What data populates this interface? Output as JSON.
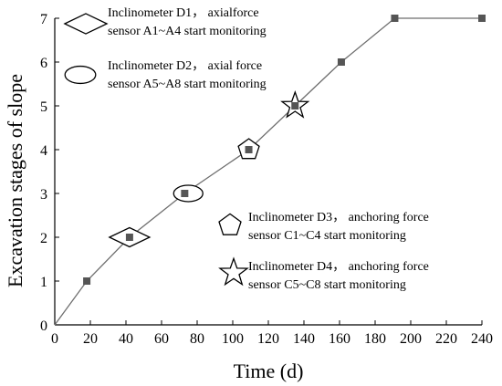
{
  "chart_data": {
    "type": "line",
    "xlabel": "Time (d)",
    "ylabel": "Excavation stages of slope",
    "xlim": [
      0,
      240
    ],
    "ylim": [
      0,
      7
    ],
    "xticks": [
      0,
      20,
      40,
      60,
      80,
      100,
      120,
      140,
      160,
      180,
      200,
      220,
      240
    ],
    "yticks": [
      0,
      1,
      2,
      3,
      4,
      5,
      6,
      7
    ],
    "grid": false,
    "series": [
      {
        "x": [
          0,
          18,
          42,
          73,
          109,
          135,
          161,
          191,
          240
        ],
        "y": [
          0,
          1,
          2,
          3,
          4,
          5,
          6,
          7,
          7
        ],
        "color": "#6e6e6e",
        "marker": "square"
      }
    ],
    "point_markers": [
      {
        "shape": "diamond",
        "x": 42,
        "y": 2
      },
      {
        "shape": "ellipse",
        "x": 75,
        "y": 3
      },
      {
        "shape": "pentagon",
        "x": 109,
        "y": 4
      },
      {
        "shape": "star",
        "x": 135,
        "y": 5
      }
    ],
    "annotations": [
      {
        "shape": "diamond",
        "lines": [
          "Inclinometer D1， axialforce",
          "sensor A1~A4 start monitoring"
        ]
      },
      {
        "shape": "ellipse",
        "lines": [
          "Inclinometer D2， axial force",
          "sensor A5~A8 start monitoring"
        ]
      },
      {
        "shape": "pentagon",
        "lines": [
          "Inclinometer D3， anchoring force",
          "sensor C1~C4 start monitoring"
        ]
      },
      {
        "shape": "star",
        "lines": [
          "Inclinometer D4， anchoring force",
          "sensor C5~C8 start monitoring"
        ]
      }
    ]
  }
}
